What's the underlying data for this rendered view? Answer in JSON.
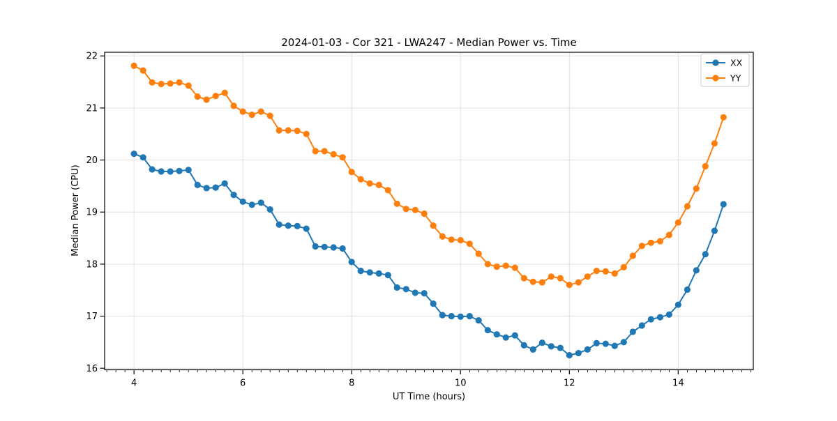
{
  "window": {
    "background": "#ffffff"
  },
  "chart_data": {
    "type": "line",
    "title": "2024-01-03 - Cor 321 - LWA247 - Median Power vs. Time",
    "xlabel": "UT Time (hours)",
    "ylabel": "Median Power (CPU)",
    "xlim": [
      3.46,
      15.38
    ],
    "ylim": [
      15.97,
      22.07
    ],
    "x_major_ticks": [
      4,
      6,
      8,
      10,
      12,
      14
    ],
    "x_minor_tick_step": 0.1667,
    "y_ticks": [
      16,
      17,
      18,
      19,
      20,
      21,
      22
    ],
    "grid": true,
    "grid_color": "#dddddd",
    "spine_color": "#000000",
    "legend_position": "upper right",
    "x": [
      4.0,
      4.167,
      4.333,
      4.5,
      4.667,
      4.833,
      5.0,
      5.167,
      5.333,
      5.5,
      5.667,
      5.833,
      6.0,
      6.167,
      6.333,
      6.5,
      6.667,
      6.833,
      7.0,
      7.167,
      7.333,
      7.5,
      7.667,
      7.833,
      8.0,
      8.167,
      8.333,
      8.5,
      8.667,
      8.833,
      9.0,
      9.167,
      9.333,
      9.5,
      9.667,
      9.833,
      10.0,
      10.167,
      10.333,
      10.5,
      10.667,
      10.833,
      11.0,
      11.167,
      11.333,
      11.5,
      11.667,
      11.833,
      12.0,
      12.167,
      12.333,
      12.5,
      12.667,
      12.833,
      13.0,
      13.167,
      13.333,
      13.5,
      13.667,
      13.833,
      14.0,
      14.167,
      14.333,
      14.5,
      14.667,
      14.833
    ],
    "series": [
      {
        "name": "XX",
        "color": "#1f77b4",
        "values": [
          20.12,
          20.05,
          19.82,
          19.78,
          19.78,
          19.79,
          19.81,
          19.52,
          19.46,
          19.47,
          19.55,
          19.33,
          19.2,
          19.14,
          19.18,
          19.05,
          18.76,
          18.74,
          18.73,
          18.68,
          18.34,
          18.33,
          18.32,
          18.3,
          18.04,
          17.87,
          17.84,
          17.82,
          17.79,
          17.55,
          17.52,
          17.45,
          17.44,
          17.24,
          17.02,
          17.0,
          16.99,
          17.0,
          16.92,
          16.73,
          16.65,
          16.59,
          16.63,
          16.44,
          16.36,
          16.49,
          16.42,
          16.39,
          16.25,
          16.29,
          16.36,
          16.48,
          16.47,
          16.43,
          16.5,
          16.7,
          16.82,
          16.94,
          16.98,
          17.03,
          17.22,
          17.51,
          17.88,
          18.19,
          18.64,
          19.15
        ]
      },
      {
        "name": "YY",
        "color": "#ff7f0e",
        "values": [
          21.81,
          21.72,
          21.49,
          21.46,
          21.47,
          21.49,
          21.43,
          21.22,
          21.16,
          21.23,
          21.29,
          21.04,
          20.93,
          20.87,
          20.93,
          20.85,
          20.57,
          20.57,
          20.56,
          20.5,
          20.17,
          20.17,
          20.11,
          20.05,
          19.77,
          19.63,
          19.55,
          19.52,
          19.42,
          19.16,
          19.06,
          19.04,
          18.97,
          18.74,
          18.53,
          18.47,
          18.46,
          18.39,
          18.2,
          18.0,
          17.95,
          17.97,
          17.93,
          17.73,
          17.66,
          17.65,
          17.76,
          17.73,
          17.6,
          17.65,
          17.76,
          17.87,
          17.86,
          17.82,
          17.94,
          18.16,
          18.35,
          18.41,
          18.44,
          18.56,
          18.8,
          19.11,
          19.45,
          19.88,
          20.32,
          20.82
        ]
      }
    ]
  }
}
